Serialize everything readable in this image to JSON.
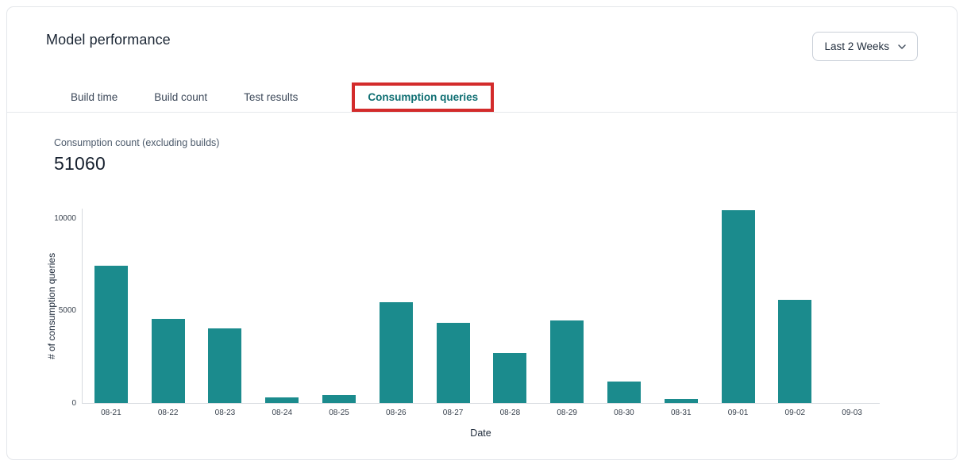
{
  "header": {
    "title": "Model performance",
    "date_range": {
      "value": "Last 2 Weeks"
    }
  },
  "tabs": {
    "items": [
      {
        "label": "Build time",
        "active": false
      },
      {
        "label": "Build count",
        "active": false
      },
      {
        "label": "Test results",
        "active": false
      },
      {
        "label": "Consumption queries",
        "active": true
      }
    ],
    "annotation_color": "#d32b2b"
  },
  "metric": {
    "label": "Consumption count (excluding builds)",
    "value": "51060"
  },
  "chart_data": {
    "type": "bar",
    "title": "",
    "xlabel": "Date",
    "ylabel": "# of consumption queries",
    "categories": [
      "08-21",
      "08-22",
      "08-23",
      "08-24",
      "08-25",
      "08-26",
      "08-27",
      "08-28",
      "08-29",
      "08-30",
      "08-31",
      "09-01",
      "09-02",
      "09-03"
    ],
    "values": [
      7430,
      4560,
      4030,
      315,
      435,
      5460,
      4340,
      2690,
      4440,
      1140,
      220,
      10440,
      5560,
      0
    ],
    "yticks": [
      0,
      5000,
      10000
    ],
    "ylim": [
      0,
      10550
    ],
    "grid": false,
    "legend": null,
    "bar_color": "#1b8b8d"
  },
  "colors": {
    "accent_teal": "#1b8b8d",
    "active_tab_text": "#0e6e72",
    "annotation_red": "#d32b2b",
    "card_border": "#e3e6ea",
    "axis_line": "#d7dadf",
    "text_dark": "#1a2533",
    "text_muted": "#4c5a6b"
  }
}
